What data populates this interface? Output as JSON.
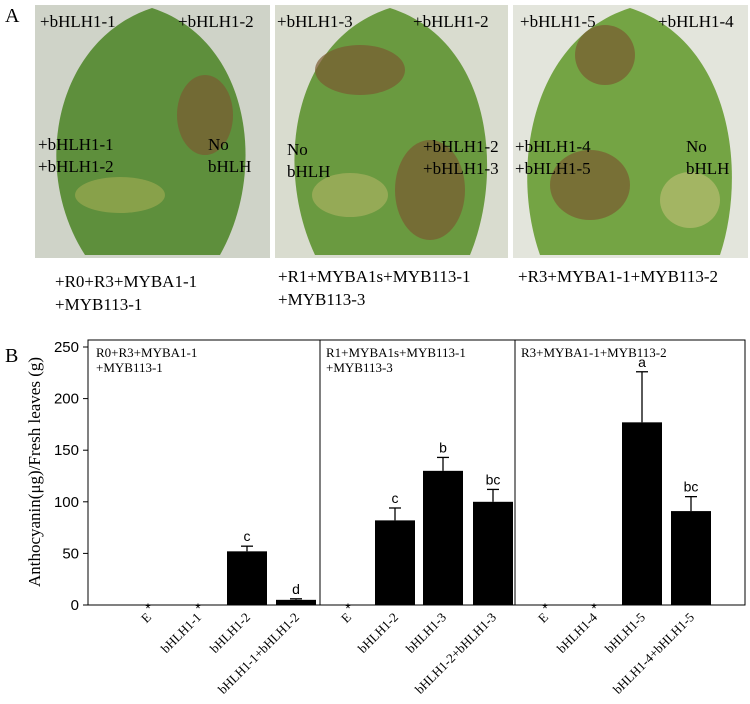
{
  "panel_a": {
    "label": "A",
    "photos": [
      {
        "labels": [
          [
            "+bHLH1-1"
          ],
          [
            "+bHLH1-2"
          ],
          [
            "+bHLH1-1",
            "+bHLH1-2"
          ],
          [
            "No",
            "bHLH"
          ]
        ],
        "caption": [
          "+R0+R3+MYBA1-1",
          "+MYB113-1"
        ]
      },
      {
        "labels": [
          [
            "+bHLH1-3"
          ],
          [
            "+bHLH1-2"
          ],
          [
            "No",
            "bHLH"
          ],
          [
            "+bHLH1-2",
            "+bHLH1-3"
          ]
        ],
        "caption": [
          "+R1+MYBA1s+MYB113-1",
          "+MYB113-3"
        ]
      },
      {
        "labels": [
          [
            "+bHLH1-5"
          ],
          [
            "+bHLH1-4"
          ],
          [
            "+bHLH1-4",
            "+bHLH1-5"
          ],
          [
            "No",
            "bHLH"
          ]
        ],
        "caption": [
          "+R3+MYBA1-1+MYB113-2"
        ]
      }
    ]
  },
  "chart_data": {
    "type": "bar",
    "panel_label": "B",
    "ylabel": "Anthocyanin(μg)/Fresh leaves (g)",
    "ylim": [
      0,
      250
    ],
    "yticks": [
      0,
      50,
      100,
      150,
      200,
      250
    ],
    "color": "#000000",
    "groups": [
      [
        "R0+R3+MYBA1-1",
        "+MYB113-1"
      ],
      [
        "R1+MYBA1s+MYB113-1",
        "+MYB113-3"
      ],
      [
        "R3+MYBA1-1+MYB113-2"
      ]
    ],
    "categories": [
      "E",
      "bHLH1-1",
      "bHLH1-2",
      "bHLH1-1+bHLH1-2",
      "E",
      "bHLH1-2",
      "bHLH1-3",
      "bHLH1-2+bHLH1-3",
      "E",
      "bHLH1-4",
      "bHLH1-5",
      "bHLH1-4+bHLH1-5"
    ],
    "values": [
      0,
      0,
      52,
      5,
      0,
      82,
      130,
      100,
      0,
      0,
      177,
      91
    ],
    "errors": [
      null,
      null,
      5,
      1,
      null,
      12,
      13,
      12,
      null,
      null,
      49,
      14
    ],
    "significance": [
      "*",
      "*",
      "c",
      "d",
      "*",
      "c",
      "b",
      "bc",
      "*",
      "*",
      "a",
      "bc"
    ]
  }
}
